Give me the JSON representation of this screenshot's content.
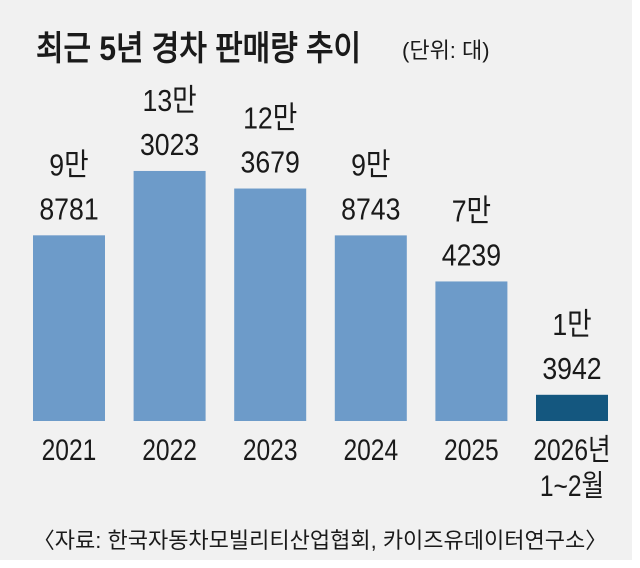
{
  "chart_data": {
    "type": "bar",
    "title": "최근 5년 경차 판매량 추이",
    "unit_note": "(단위: 대)",
    "categories": [
      "2021",
      "2022",
      "2023",
      "2024",
      "2025",
      "2026년 1~2월"
    ],
    "category_lines": [
      [
        "2021"
      ],
      [
        "2022"
      ],
      [
        "2023"
      ],
      [
        "2024"
      ],
      [
        "2025"
      ],
      [
        "2026년",
        "1~2월"
      ]
    ],
    "values": [
      98781,
      133023,
      123679,
      98743,
      74239,
      13942
    ],
    "data_labels": [
      [
        "9만",
        "8781"
      ],
      [
        "13만",
        "3023"
      ],
      [
        "12만",
        "3679"
      ],
      [
        "9만",
        "8743"
      ],
      [
        "7만",
        "4239"
      ],
      [
        "1만",
        "3942"
      ]
    ],
    "colors": [
      "#6d9bc9",
      "#6d9bc9",
      "#6d9bc9",
      "#6d9bc9",
      "#6d9bc9",
      "#14577f"
    ],
    "ylim": [
      0,
      135000
    ],
    "grid": false,
    "source": "〈자료: 한국자동차모빌리티산업협회, 카이즈유데이터연구소〉"
  }
}
